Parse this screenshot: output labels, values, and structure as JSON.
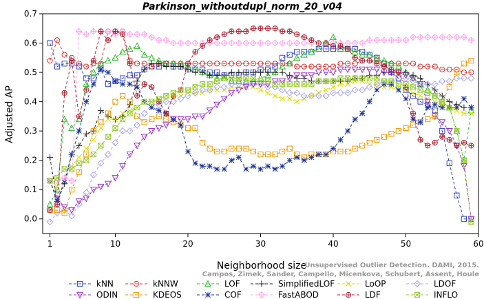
{
  "chart_data": {
    "type": "line",
    "title": "Parkinson_withoutdupl_norm_20_v04",
    "xlabel": "Neighborhood size",
    "ylabel": "Adjusted AP",
    "xlim": [
      0,
      60
    ],
    "ylim": [
      -0.05,
      0.7
    ],
    "xticks": [
      "1",
      "10",
      "20",
      "30",
      "40",
      "50",
      "60"
    ],
    "yticks": [
      "0.0",
      "0.1",
      "0.2",
      "0.3",
      "0.4",
      "0.5",
      "0.6",
      "0.7"
    ],
    "grid": false,
    "legend_position": "bottom",
    "x": [
      1,
      2,
      3,
      4,
      5,
      6,
      7,
      8,
      9,
      10,
      11,
      12,
      13,
      14,
      15,
      16,
      17,
      18,
      19,
      20,
      21,
      22,
      23,
      24,
      25,
      26,
      27,
      28,
      29,
      30,
      31,
      32,
      33,
      34,
      35,
      36,
      37,
      38,
      39,
      40,
      41,
      42,
      43,
      44,
      45,
      46,
      47,
      48,
      49,
      50,
      51,
      52,
      53,
      54,
      55,
      56,
      57,
      58,
      59
    ],
    "series": [
      {
        "name": "kNN",
        "color": "#3344cc",
        "marker": "square",
        "values": [
          0.6,
          0.52,
          0.53,
          0.53,
          0.52,
          0.48,
          0.48,
          0.51,
          0.46,
          0.47,
          0.48,
          0.49,
          0.49,
          0.51,
          0.52,
          0.52,
          0.53,
          0.52,
          0.52,
          0.51,
          0.51,
          0.51,
          0.5,
          0.5,
          0.49,
          0.49,
          0.49,
          0.5,
          0.5,
          0.51,
          0.51,
          0.52,
          0.55,
          0.56,
          0.57,
          0.57,
          0.57,
          0.58,
          0.58,
          0.58,
          0.58,
          0.58,
          0.58,
          0.57,
          0.56,
          0.55,
          0.53,
          0.5,
          0.48,
          0.44,
          0.42,
          0.4,
          0.39,
          0.37,
          0.3,
          0.19,
          0.08,
          0.0,
          0.0
        ]
      },
      {
        "name": "kNNW",
        "color": "#dd3333",
        "marker": "circle",
        "values": [
          0.54,
          0.61,
          0.56,
          0.55,
          0.53,
          0.52,
          0.53,
          0.53,
          0.64,
          0.64,
          0.64,
          0.54,
          0.53,
          0.53,
          0.52,
          0.53,
          0.53,
          0.53,
          0.53,
          0.53,
          0.53,
          0.53,
          0.53,
          0.53,
          0.53,
          0.53,
          0.53,
          0.53,
          0.53,
          0.53,
          0.53,
          0.53,
          0.53,
          0.53,
          0.52,
          0.52,
          0.52,
          0.52,
          0.52,
          0.52,
          0.53,
          0.53,
          0.53,
          0.54,
          0.54,
          0.54,
          0.53,
          0.53,
          0.53,
          0.53,
          0.53,
          0.52,
          0.52,
          0.52,
          0.51,
          0.51,
          0.51,
          0.5,
          0.5
        ]
      },
      {
        "name": "LOF",
        "color": "#33bb33",
        "marker": "triangle-up",
        "values": [
          0.05,
          0.1,
          0.34,
          0.31,
          0.34,
          0.46,
          0.5,
          0.53,
          0.54,
          0.55,
          0.57,
          0.58,
          0.59,
          0.56,
          0.55,
          0.54,
          0.53,
          0.53,
          0.53,
          0.52,
          0.51,
          0.5,
          0.49,
          0.48,
          0.48,
          0.47,
          0.47,
          0.47,
          0.47,
          0.48,
          0.49,
          0.5,
          0.52,
          0.53,
          0.55,
          0.56,
          0.57,
          0.58,
          0.6,
          0.62,
          0.58,
          0.58,
          0.57,
          0.56,
          0.56,
          0.55,
          0.54,
          0.53,
          0.52,
          0.5,
          0.48,
          0.46,
          0.44,
          0.42,
          0.4,
          0.38,
          0.3,
          0.2,
          0.37
        ]
      },
      {
        "name": "SimplifiedLOF",
        "color": "#222222",
        "marker": "plus",
        "values": [
          0.21,
          0.06,
          0.12,
          0.22,
          0.25,
          0.29,
          0.3,
          0.37,
          0.35,
          0.34,
          0.35,
          0.39,
          0.47,
          0.51,
          0.53,
          0.53,
          0.52,
          0.52,
          0.52,
          0.51,
          0.5,
          0.5,
          0.49,
          0.49,
          0.49,
          0.5,
          0.5,
          0.5,
          0.5,
          0.5,
          0.5,
          0.5,
          0.5,
          0.49,
          0.48,
          0.48,
          0.47,
          0.47,
          0.47,
          0.47,
          0.47,
          0.47,
          0.48,
          0.48,
          0.49,
          0.49,
          0.5,
          0.5,
          0.5,
          0.5,
          0.49,
          0.48,
          0.46,
          0.44,
          0.42,
          0.4,
          0.39,
          0.38,
          0.38
        ]
      },
      {
        "name": "LoOP",
        "color": "#dddd00",
        "marker": "x",
        "values": [
          0.13,
          0.11,
          0.13,
          0.18,
          0.21,
          0.24,
          0.27,
          0.31,
          0.34,
          0.34,
          0.36,
          0.37,
          0.38,
          0.4,
          0.4,
          0.4,
          0.41,
          0.42,
          0.42,
          0.43,
          0.43,
          0.43,
          0.44,
          0.44,
          0.44,
          0.45,
          0.45,
          0.45,
          0.45,
          0.44,
          0.43,
          0.42,
          0.41,
          0.41,
          0.4,
          0.41,
          0.42,
          0.43,
          0.44,
          0.45,
          0.46,
          0.46,
          0.47,
          0.47,
          0.46,
          0.46,
          0.45,
          0.45,
          0.44,
          0.44,
          0.43,
          0.42,
          0.41,
          0.4,
          0.39,
          0.38,
          0.37,
          0.36,
          0.36
        ]
      },
      {
        "name": "LDOF",
        "color": "#aaaaee",
        "marker": "diamond",
        "values": [
          -0.01,
          0.02,
          0.03,
          0.01,
          0.05,
          0.09,
          0.15,
          0.19,
          0.22,
          0.26,
          0.3,
          0.3,
          0.32,
          0.36,
          0.39,
          0.39,
          0.4,
          0.4,
          0.41,
          0.42,
          0.43,
          0.44,
          0.44,
          0.45,
          0.45,
          0.46,
          0.46,
          0.46,
          0.46,
          0.46,
          0.45,
          0.45,
          0.44,
          0.43,
          0.43,
          0.42,
          0.42,
          0.42,
          0.42,
          0.43,
          0.43,
          0.43,
          0.44,
          0.44,
          0.45,
          0.46,
          0.47,
          0.47,
          0.48,
          0.48,
          0.47,
          0.46,
          0.46,
          0.46,
          0.47,
          0.47,
          0.48,
          0.48,
          0.48
        ]
      },
      {
        "name": "ODIN",
        "color": "#9933cc",
        "marker": "triangle-down",
        "values": [
          0.13,
          0.07,
          0.04,
          0.03,
          0.06,
          0.07,
          0.1,
          0.11,
          0.12,
          0.14,
          0.18,
          0.22,
          0.25,
          0.28,
          0.3,
          0.31,
          0.32,
          0.34,
          0.34,
          0.34,
          0.35,
          0.35,
          0.37,
          0.39,
          0.41,
          0.43,
          0.44,
          0.45,
          0.46,
          0.46,
          0.46,
          0.47,
          0.47,
          0.48,
          0.49,
          0.49,
          0.49,
          0.5,
          0.5,
          0.5,
          0.51,
          0.51,
          0.51,
          0.51,
          0.51,
          0.51,
          0.5,
          0.5,
          0.5,
          0.49,
          0.48,
          0.46,
          0.4,
          0.35,
          0.33,
          0.3,
          0.25,
          0.18,
          0.0
        ]
      },
      {
        "name": "KDEOS",
        "color": "#ee9900",
        "marker": "square",
        "values": [
          0.03,
          0.03,
          0.02,
          0.1,
          0.16,
          0.22,
          0.3,
          0.33,
          0.36,
          0.4,
          0.42,
          0.4,
          0.35,
          0.33,
          0.34,
          0.35,
          0.34,
          0.33,
          0.32,
          0.31,
          0.31,
          0.26,
          0.24,
          0.23,
          0.23,
          0.24,
          0.24,
          0.24,
          0.23,
          0.22,
          0.22,
          0.22,
          0.23,
          0.24,
          0.22,
          0.21,
          0.22,
          0.22,
          0.22,
          0.23,
          0.23,
          0.23,
          0.24,
          0.25,
          0.26,
          0.27,
          0.28,
          0.29,
          0.3,
          0.31,
          0.32,
          0.33,
          0.34,
          0.35,
          0.4,
          0.45,
          0.5,
          0.53,
          0.54
        ]
      },
      {
        "name": "COF",
        "color": "#1a3399",
        "marker": "star",
        "values": [
          0.13,
          0.06,
          0.13,
          0.22,
          0.3,
          0.4,
          0.46,
          0.51,
          0.5,
          0.47,
          0.46,
          0.46,
          0.45,
          0.4,
          0.38,
          0.37,
          0.36,
          0.34,
          0.32,
          0.23,
          0.19,
          0.18,
          0.18,
          0.17,
          0.17,
          0.2,
          0.21,
          0.17,
          0.18,
          0.17,
          0.18,
          0.17,
          0.18,
          0.2,
          0.21,
          0.2,
          0.21,
          0.22,
          0.22,
          0.24,
          0.27,
          0.3,
          0.34,
          0.36,
          0.4,
          0.44,
          0.46,
          0.46,
          0.44,
          0.41,
          0.34,
          0.33,
          0.38,
          0.39,
          0.38,
          0.38,
          0.38,
          0.41,
          0.38
        ]
      },
      {
        "name": "FastABOD",
        "color": "#ffaaee",
        "marker": "diamond-plus",
        "values": [
          0.13,
          0.13,
          0.14,
          0.13,
          0.64,
          0.63,
          0.64,
          0.64,
          0.64,
          0.63,
          0.64,
          0.63,
          0.63,
          0.63,
          0.62,
          0.61,
          0.61,
          0.6,
          0.6,
          0.6,
          0.6,
          0.6,
          0.6,
          0.6,
          0.6,
          0.6,
          0.6,
          0.6,
          0.6,
          0.6,
          0.6,
          0.6,
          0.6,
          0.6,
          0.6,
          0.6,
          0.6,
          0.6,
          0.6,
          0.6,
          0.6,
          0.6,
          0.6,
          0.6,
          0.61,
          0.61,
          0.61,
          0.61,
          0.61,
          0.61,
          0.62,
          0.62,
          0.62,
          0.62,
          0.62,
          0.62,
          0.62,
          0.62,
          0.61
        ]
      },
      {
        "name": "LDF",
        "color": "#aa2233",
        "marker": "circle-plus",
        "values": [
          0.03,
          0.05,
          0.43,
          0.54,
          0.35,
          0.44,
          0.54,
          0.64,
          0.61,
          0.64,
          0.63,
          0.53,
          0.42,
          0.46,
          0.45,
          0.4,
          0.36,
          0.42,
          0.44,
          0.53,
          0.57,
          0.59,
          0.61,
          0.62,
          0.63,
          0.64,
          0.64,
          0.64,
          0.65,
          0.65,
          0.65,
          0.65,
          0.64,
          0.64,
          0.63,
          0.62,
          0.61,
          0.6,
          0.6,
          0.59,
          0.59,
          0.58,
          0.55,
          0.54,
          0.54,
          0.53,
          0.52,
          0.51,
          0.5,
          0.45,
          0.36,
          0.27,
          0.25,
          0.26,
          0.28,
          0.27,
          0.25,
          0.26,
          0.25
        ]
      },
      {
        "name": "INFLO",
        "color": "#99cc33",
        "marker": "square-x",
        "values": [
          0.13,
          0.14,
          0.17,
          0.17,
          0.19,
          0.2,
          0.22,
          0.25,
          0.28,
          0.31,
          0.34,
          0.36,
          0.38,
          0.4,
          0.4,
          0.41,
          0.42,
          0.43,
          0.44,
          0.44,
          0.45,
          0.46,
          0.46,
          0.47,
          0.48,
          0.48,
          0.48,
          0.48,
          0.48,
          0.47,
          0.47,
          0.46,
          0.46,
          0.46,
          0.46,
          0.46,
          0.46,
          0.47,
          0.47,
          0.47,
          0.48,
          0.48,
          0.48,
          0.48,
          0.48,
          0.48,
          0.47,
          0.47,
          0.46,
          0.46,
          0.45,
          0.44,
          0.43,
          0.42,
          0.4,
          0.38,
          0.3,
          0.2,
          -0.01
        ]
      }
    ]
  },
  "watermark": [
    "Unsupervised Outlier Detection. DAMI, 2015.",
    "Campos, Zimek, Sander, Campello, Micenkova, Schubert, Assent, Houle"
  ]
}
